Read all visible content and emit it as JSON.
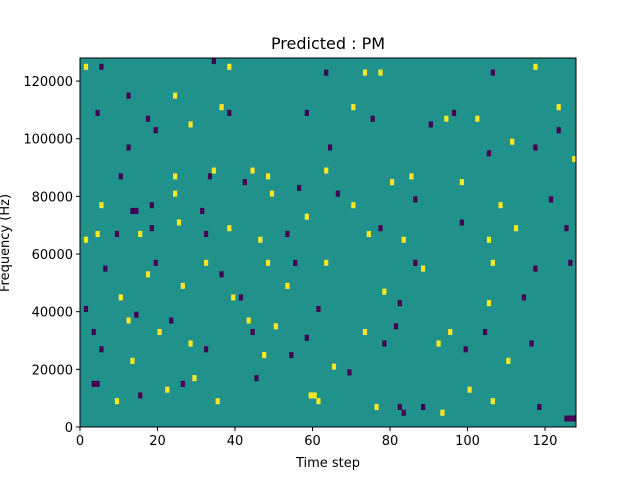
{
  "chart_data": {
    "type": "heatmap",
    "title": "Predicted : PM",
    "xlabel": "Time step",
    "ylabel": "Frequency (Hz)",
    "xlim": [
      0,
      128
    ],
    "ylim": [
      0,
      128000
    ],
    "xticks": [
      0,
      20,
      40,
      60,
      80,
      100,
      120
    ],
    "yticks": [
      0,
      20000,
      40000,
      60000,
      80000,
      100000,
      120000
    ],
    "grid": false,
    "colormap": {
      "background": "#21918c",
      "low": "#440154",
      "high": "#fde725"
    },
    "cells_high": [
      [
        1,
        124000
      ],
      [
        38,
        124000
      ],
      [
        73,
        122000
      ],
      [
        77,
        122000
      ],
      [
        117,
        124000
      ],
      [
        24,
        114000
      ],
      [
        36,
        110000
      ],
      [
        70,
        110000
      ],
      [
        123,
        110000
      ],
      [
        28,
        104000
      ],
      [
        94,
        106000
      ],
      [
        102,
        106000
      ],
      [
        111,
        98000
      ],
      [
        127,
        92000
      ],
      [
        24,
        86000
      ],
      [
        34,
        88000
      ],
      [
        44,
        88000
      ],
      [
        48,
        86000
      ],
      [
        63,
        88000
      ],
      [
        80,
        84000
      ],
      [
        85,
        86000
      ],
      [
        98,
        84000
      ],
      [
        5,
        76000
      ],
      [
        24,
        80000
      ],
      [
        49,
        80000
      ],
      [
        70,
        76000
      ],
      [
        108,
        76000
      ],
      [
        1,
        64000
      ],
      [
        4,
        66000
      ],
      [
        15,
        66000
      ],
      [
        25,
        70000
      ],
      [
        38,
        68000
      ],
      [
        46,
        64000
      ],
      [
        58,
        72000
      ],
      [
        74,
        66000
      ],
      [
        83,
        64000
      ],
      [
        105,
        64000
      ],
      [
        112,
        68000
      ],
      [
        17,
        52000
      ],
      [
        32,
        56000
      ],
      [
        48,
        56000
      ],
      [
        63,
        56000
      ],
      [
        88,
        54000
      ],
      [
        106,
        56000
      ],
      [
        10,
        44000
      ],
      [
        26,
        48000
      ],
      [
        39,
        44000
      ],
      [
        53,
        48000
      ],
      [
        78,
        46000
      ],
      [
        105,
        42000
      ],
      [
        12,
        36000
      ],
      [
        20,
        32000
      ],
      [
        43,
        36000
      ],
      [
        50,
        34000
      ],
      [
        73,
        32000
      ],
      [
        95,
        32000
      ],
      [
        13,
        22000
      ],
      [
        28,
        28000
      ],
      [
        47,
        24000
      ],
      [
        65,
        20000
      ],
      [
        92,
        28000
      ],
      [
        110,
        22000
      ],
      [
        9,
        8000
      ],
      [
        22,
        12000
      ],
      [
        29,
        16000
      ],
      [
        35,
        8000
      ],
      [
        59,
        10000
      ],
      [
        60,
        10000
      ],
      [
        61,
        8000
      ],
      [
        76,
        6000
      ],
      [
        93,
        4000
      ],
      [
        100,
        12000
      ],
      [
        106,
        8000
      ]
    ],
    "cells_low": [
      [
        5,
        124000
      ],
      [
        34,
        126000
      ],
      [
        63,
        122000
      ],
      [
        106,
        122000
      ],
      [
        4,
        108000
      ],
      [
        12,
        114000
      ],
      [
        17,
        106000
      ],
      [
        38,
        108000
      ],
      [
        58,
        108000
      ],
      [
        19,
        102000
      ],
      [
        75,
        106000
      ],
      [
        90,
        104000
      ],
      [
        96,
        108000
      ],
      [
        123,
        102000
      ],
      [
        12,
        96000
      ],
      [
        64,
        96000
      ],
      [
        105,
        94000
      ],
      [
        117,
        96000
      ],
      [
        10,
        86000
      ],
      [
        33,
        86000
      ],
      [
        42,
        84000
      ],
      [
        56,
        82000
      ],
      [
        66,
        80000
      ],
      [
        13,
        74000
      ],
      [
        14,
        74000
      ],
      [
        18,
        76000
      ],
      [
        31,
        74000
      ],
      [
        86,
        78000
      ],
      [
        121,
        78000
      ],
      [
        9,
        66000
      ],
      [
        18,
        68000
      ],
      [
        32,
        66000
      ],
      [
        53,
        66000
      ],
      [
        77,
        68000
      ],
      [
        98,
        70000
      ],
      [
        125,
        68000
      ],
      [
        6,
        54000
      ],
      [
        19,
        56000
      ],
      [
        36,
        52000
      ],
      [
        55,
        56000
      ],
      [
        86,
        56000
      ],
      [
        117,
        54000
      ],
      [
        126,
        56000
      ],
      [
        1,
        40000
      ],
      [
        14,
        38000
      ],
      [
        41,
        44000
      ],
      [
        61,
        40000
      ],
      [
        82,
        42000
      ],
      [
        114,
        44000
      ],
      [
        3,
        32000
      ],
      [
        23,
        36000
      ],
      [
        44,
        32000
      ],
      [
        58,
        30000
      ],
      [
        81,
        34000
      ],
      [
        104,
        32000
      ],
      [
        5,
        26000
      ],
      [
        32,
        26000
      ],
      [
        54,
        24000
      ],
      [
        78,
        28000
      ],
      [
        99,
        26000
      ],
      [
        116,
        28000
      ],
      [
        3,
        14000
      ],
      [
        4,
        14000
      ],
      [
        15,
        10000
      ],
      [
        26,
        14000
      ],
      [
        45,
        16000
      ],
      [
        69,
        18000
      ],
      [
        82,
        6000
      ],
      [
        83,
        4000
      ],
      [
        88,
        6000
      ],
      [
        118,
        6000
      ],
      [
        125,
        2000
      ],
      [
        126,
        2000
      ],
      [
        127,
        2000
      ]
    ]
  }
}
